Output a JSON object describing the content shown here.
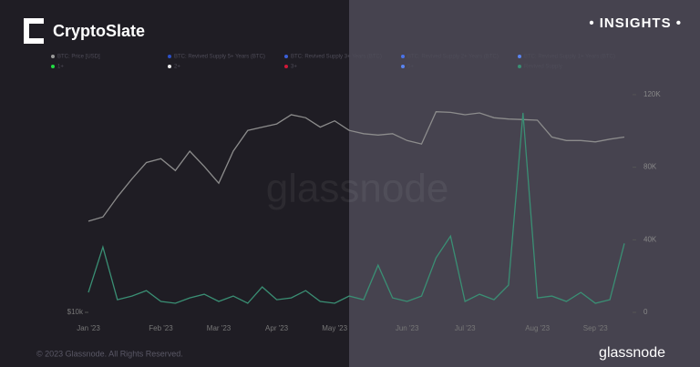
{
  "brand": "CryptoSlate",
  "badge": "• INSIGHTS •",
  "copyright": "© 2023 Glassnode. All Rights Reserved.",
  "footer_logo": "glassnode",
  "chart_data": {
    "type": "line",
    "watermark": "glassnode",
    "legend": [
      {
        "name": "BTC: Price [USD]",
        "color": "#9a9a9a"
      },
      {
        "name": "BTC: Revived Supply 5+ Years (BTC)",
        "color": "#2c50c8"
      },
      {
        "name": "BTC: Revived Supply 3+ Years (BTC)",
        "color": "#3a5fd8"
      },
      {
        "name": "BTC: Revived Supply 2+ Years (BTC)",
        "color": "#4a72e8"
      },
      {
        "name": "BTC: Revived Supply 1+ Years (BTC)",
        "color": "#5a84f0"
      },
      {
        "name": "1+",
        "color": "#22dd44"
      },
      {
        "name": "2+",
        "color": "#eeeeee"
      },
      {
        "name": "3+",
        "color": "#d01838"
      },
      {
        "name": "5+",
        "color": "#5a84f0"
      },
      {
        "name": "Revived Supply",
        "color": "#3a8f74"
      }
    ],
    "categories": [
      "Jan '23",
      null,
      null,
      null,
      null,
      "Feb '23",
      null,
      null,
      null,
      "Mar '23",
      null,
      null,
      null,
      "Apr '23",
      null,
      null,
      null,
      "May '23",
      null,
      null,
      null,
      null,
      "Jun '23",
      null,
      null,
      null,
      "Jul '23",
      null,
      null,
      null,
      null,
      "Aug '23",
      null,
      null,
      null,
      "Sep '23",
      null,
      null
    ],
    "series": [
      {
        "name": "BTC: Price [USD]",
        "color": "#8c8c8c",
        "axis": "y",
        "values": [
          16600,
          17000,
          19000,
          21000,
          23000,
          23500,
          22000,
          24500,
          22500,
          20500,
          24500,
          27500,
          28000,
          28500,
          30000,
          29500,
          28000,
          29000,
          27500,
          27000,
          26800,
          27000,
          26000,
          25500,
          30500,
          30400,
          30000,
          30300,
          29500,
          29300,
          29200,
          29100,
          26500,
          26000,
          26000,
          25800,
          26200,
          26500
        ]
      },
      {
        "name": "Revived Supply",
        "color": "#3a8f74",
        "axis": "y2",
        "values": [
          11000,
          36000,
          7000,
          9000,
          12000,
          6000,
          5000,
          8000,
          10000,
          6000,
          9000,
          5000,
          14000,
          7000,
          8000,
          12000,
          6000,
          5000,
          9000,
          7000,
          26000,
          8000,
          6000,
          9000,
          30000,
          42000,
          6000,
          10000,
          7000,
          15000,
          110000,
          8000,
          9000,
          6000,
          11000,
          5000,
          7000,
          38000
        ]
      }
    ],
    "log_y": true,
    "ylim": [
      10000,
      36000
    ],
    "yticks": [
      {
        "value": 10000,
        "label": "$10k"
      }
    ],
    "y2lim": [
      0,
      127000
    ],
    "y2ticks": [
      0,
      {
        "value": 40000,
        "label": "40K"
      },
      {
        "value": 80000,
        "label": "80K"
      },
      {
        "value": 120000,
        "label": "120K"
      }
    ]
  }
}
